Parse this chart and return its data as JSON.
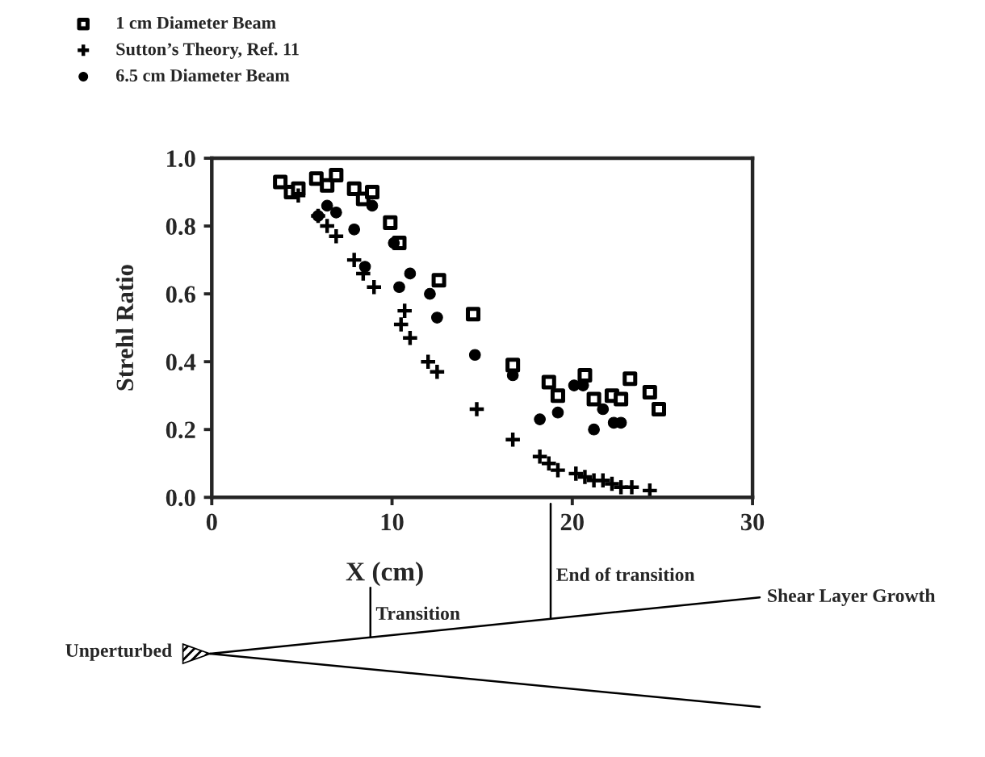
{
  "chart_data": {
    "type": "scatter",
    "xlabel": "X (cm)",
    "ylabel": "Strehl Ratio",
    "xlim": [
      0,
      30
    ],
    "xticks": [
      0,
      10,
      20,
      30
    ],
    "ylim": [
      0,
      1
    ],
    "yticks": [
      {
        "value": 0,
        "label": "0.0"
      },
      {
        "value": 0.2,
        "label": "0.2"
      },
      {
        "value": 0.4,
        "label": "0.4"
      },
      {
        "value": 0.6,
        "label": "0.6"
      },
      {
        "value": 0.8,
        "label": "0.8"
      },
      {
        "value": 1,
        "label": "1.0"
      }
    ],
    "grid": false,
    "legend": "top left",
    "series": [
      {
        "name": "1 cm Diameter Beam",
        "color": "#000000",
        "marker": "square",
        "x": [
          3.8,
          4.4,
          4.8,
          5.8,
          6.4,
          6.9,
          7.9,
          8.4,
          8.9,
          9.9,
          10.4,
          12.6,
          14.5,
          16.7,
          18.7,
          19.2,
          20.7,
          21.2,
          22.2,
          22.7,
          23.2,
          24.3,
          24.8
        ],
        "values": [
          0.93,
          0.9,
          0.91,
          0.94,
          0.92,
          0.95,
          0.91,
          0.88,
          0.9,
          0.81,
          0.75,
          0.64,
          0.54,
          0.39,
          0.34,
          0.3,
          0.36,
          0.29,
          0.3,
          0.29,
          0.35,
          0.31,
          0.26
        ]
      },
      {
        "name": "Sutton’s Theory, Ref. 11",
        "color": "#000000",
        "marker": "cross",
        "x": [
          4.8,
          5.9,
          6.4,
          6.9,
          7.9,
          8.4,
          9.0,
          10.5,
          10.7,
          11.0,
          12.0,
          12.5,
          14.7,
          16.7,
          18.2,
          18.7,
          19.2,
          20.2,
          20.7,
          21.2,
          21.7,
          22.2,
          22.7,
          23.3,
          24.3
        ],
        "values": [
          0.89,
          0.83,
          0.8,
          0.77,
          0.7,
          0.66,
          0.62,
          0.51,
          0.55,
          0.47,
          0.4,
          0.37,
          0.26,
          0.17,
          0.12,
          0.1,
          0.08,
          0.07,
          0.06,
          0.05,
          0.05,
          0.04,
          0.03,
          0.03,
          0.02
        ]
      },
      {
        "name": "6.5 cm Diameter Beam",
        "color": "#000000",
        "marker": "circle",
        "x": [
          5.9,
          6.4,
          6.9,
          7.9,
          8.5,
          8.9,
          10.1,
          10.4,
          11.0,
          12.1,
          12.5,
          14.6,
          16.7,
          18.2,
          19.2,
          20.1,
          20.6,
          21.2,
          21.7,
          22.3,
          22.7
        ],
        "values": [
          0.83,
          0.86,
          0.84,
          0.79,
          0.68,
          0.86,
          0.75,
          0.62,
          0.66,
          0.6,
          0.53,
          0.42,
          0.36,
          0.23,
          0.25,
          0.33,
          0.33,
          0.2,
          0.26,
          0.22,
          0.22
        ]
      }
    ],
    "ref_lines": [
      {
        "axis": "x",
        "value": 8.8,
        "label": "Transition"
      },
      {
        "axis": "x",
        "value": 18.8,
        "label": "End of transition"
      }
    ],
    "annotations": [
      "Shear Layer Growth",
      "Unperturbed"
    ]
  }
}
